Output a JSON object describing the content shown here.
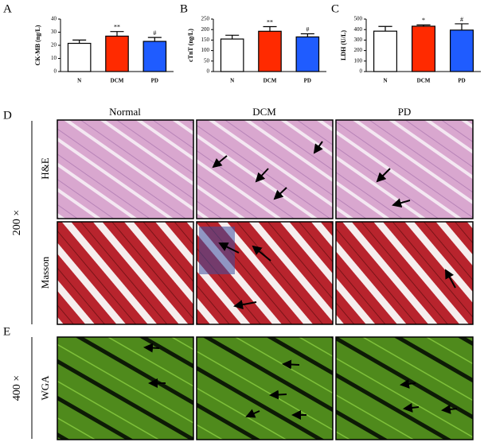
{
  "chart_data": [
    {
      "type": "bar",
      "panel": "A",
      "y_label": "CK-MB (ng/L)",
      "categories": [
        "N",
        "DCM",
        "PD"
      ],
      "values": [
        21.5,
        27,
        23
      ],
      "errors": [
        2.5,
        3.5,
        3
      ],
      "significance": [
        null,
        "**",
        "#"
      ],
      "colors": [
        "#ffffff",
        "#ff2a00",
        "#1f5cff"
      ],
      "ylim": [
        0,
        40
      ],
      "yticks": [
        0,
        10,
        20,
        30,
        40
      ]
    },
    {
      "type": "bar",
      "panel": "B",
      "y_label": "cTnT (ng/L)",
      "categories": [
        "N",
        "DCM",
        "PD"
      ],
      "values": [
        155,
        192,
        165
      ],
      "errors": [
        18,
        22,
        15
      ],
      "significance": [
        null,
        "**",
        "#"
      ],
      "colors": [
        "#ffffff",
        "#ff2a00",
        "#1f5cff"
      ],
      "ylim": [
        0,
        250
      ],
      "yticks": [
        0,
        50,
        100,
        150,
        200,
        250
      ]
    },
    {
      "type": "bar",
      "panel": "C",
      "y_label": "LDH (U/L)",
      "categories": [
        "N",
        "DCM",
        "PD"
      ],
      "values": [
        385,
        432,
        395
      ],
      "errors": [
        45,
        12,
        60
      ],
      "significance": [
        null,
        "*",
        "#"
      ],
      "colors": [
        "#ffffff",
        "#ff2a00",
        "#1f5cff"
      ],
      "ylim": [
        0,
        500
      ],
      "yticks": [
        0,
        100,
        200,
        300,
        400,
        500
      ]
    }
  ],
  "histology": {
    "panel_d": "D",
    "panel_e": "E",
    "columns": [
      "Normal",
      "DCM",
      "PD"
    ],
    "magnification_d": "200 ×",
    "magnification_e": "400 ×",
    "stains": [
      "H&E",
      "Masson",
      "WGA"
    ]
  }
}
